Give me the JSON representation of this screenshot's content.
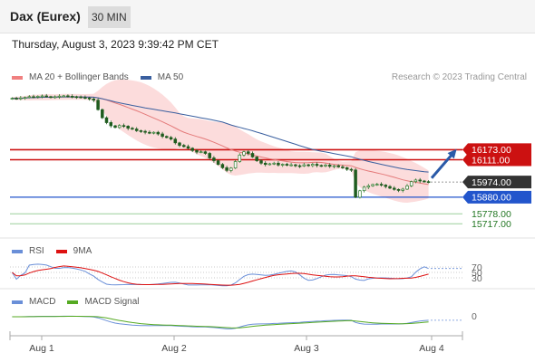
{
  "header": {
    "title": "Dax (Eurex)",
    "interval": "30 MIN"
  },
  "datetime": "Thursday, August 3, 2023 9:39:42 PM CET",
  "legend_main": [
    {
      "label": "MA 20 + Bollinger Bands",
      "color": "#f08080"
    },
    {
      "label": "MA 50",
      "color": "#3a5f9f"
    }
  ],
  "copyright": "Research © 2023 Trading Central",
  "legend_rsi": [
    {
      "label": "RSI",
      "color": "#6a8fd8"
    },
    {
      "label": "9MA",
      "color": "#dd1111"
    }
  ],
  "legend_macd": [
    {
      "label": "MACD",
      "color": "#6a8fd8"
    },
    {
      "label": "MACD Signal",
      "color": "#55aa22"
    }
  ],
  "colors": {
    "bull": "#2d7a2d",
    "bear": "#1f5c1f",
    "resistance": "#cc1111",
    "support": "#2255cc",
    "target": "#227722",
    "price": "#333333"
  },
  "chart_data": {
    "type": "candlestick",
    "x_ticks": [
      "Aug 1",
      "Aug 2",
      "Aug 3",
      "Aug 4"
    ],
    "ylim": [
      15690,
      16560
    ],
    "price_levels": [
      {
        "value": 16173.0,
        "label": "16173.00",
        "kind": "resistance"
      },
      {
        "value": 16111.0,
        "label": "16111.00",
        "kind": "resistance"
      },
      {
        "value": 15974.0,
        "label": "15974.00",
        "kind": "last_price"
      },
      {
        "value": 15880.0,
        "label": "15880.00",
        "kind": "support"
      },
      {
        "value": 15778.0,
        "label": "15778.00",
        "kind": "target"
      },
      {
        "value": 15717.0,
        "label": "15717.00",
        "kind": "target"
      }
    ],
    "close": [
      16490,
      16488,
      16492,
      16495,
      16500,
      16498,
      16502,
      16504,
      16500,
      16497,
      16499,
      16503,
      16505,
      16502,
      16500,
      16498,
      16495,
      16492,
      16486,
      16478,
      16420,
      16370,
      16340,
      16320,
      16310,
      16322,
      16318,
      16305,
      16300,
      16290,
      16286,
      16280,
      16275,
      16280,
      16270,
      16255,
      16248,
      16238,
      16215,
      16200,
      16192,
      16182,
      16168,
      16158,
      16160,
      16150,
      16122,
      16105,
      16082,
      16062,
      16045,
      16060,
      16100,
      16140,
      16160,
      16150,
      16128,
      16105,
      16090,
      16082,
      16086,
      16090,
      16079,
      16083,
      16077,
      16080,
      16074,
      16072,
      16080,
      16075,
      16083,
      16076,
      16072,
      16078,
      16070,
      16074,
      16067,
      16062,
      16052,
      16048,
      15880,
      15920,
      15942,
      15950,
      15958,
      15960,
      15955,
      15946,
      15936,
      15928,
      15922,
      15930,
      15950,
      15976,
      15986,
      15980,
      15976,
      15974
    ],
    "rsi": {
      "levels": [
        70,
        50,
        30
      ],
      "level_labels": [
        "70",
        "50",
        "30"
      ]
    },
    "macd": {
      "levels": [
        0
      ],
      "level_labels": [
        "0"
      ]
    }
  }
}
